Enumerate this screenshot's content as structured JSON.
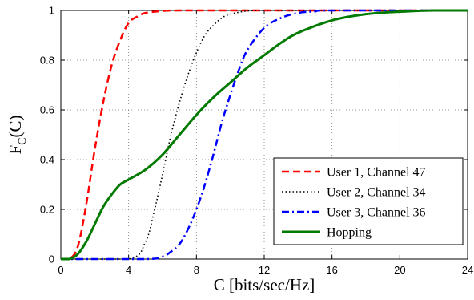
{
  "chart_data": {
    "type": "line",
    "xlabel": "C [bits/sec/Hz]",
    "ylabel": {
      "main": "F",
      "sub": "C",
      "suffix": "(C)"
    },
    "xlim": [
      0,
      24
    ],
    "ylim": [
      0,
      1
    ],
    "xticks": [
      "0",
      "4",
      "8",
      "12",
      "16",
      "20",
      "24"
    ],
    "yticks": [
      "0",
      "0.2",
      "0.4",
      "0.6",
      "0.8",
      "1"
    ],
    "grid": true,
    "legend_position": "bottom-right",
    "series": [
      {
        "name": "User 1, Channel 47",
        "color": "#ff0000",
        "style": "dashed",
        "x": [
          0,
          0.5,
          1,
          1.5,
          2,
          2.5,
          3,
          3.5,
          4,
          4.5,
          5,
          6,
          7,
          8,
          10,
          24
        ],
        "y": [
          0,
          0.0,
          0.05,
          0.22,
          0.44,
          0.63,
          0.78,
          0.88,
          0.95,
          0.975,
          0.99,
          0.998,
          1.0,
          1.0,
          1.0,
          1.0
        ]
      },
      {
        "name": "User 2, Channel 34",
        "color": "#000000",
        "style": "dotted",
        "x": [
          0,
          4,
          5,
          5.5,
          6,
          6.5,
          7,
          7.5,
          8,
          8.5,
          9,
          9.5,
          10,
          11,
          12,
          13,
          24
        ],
        "y": [
          0,
          0.0,
          0.07,
          0.19,
          0.34,
          0.5,
          0.63,
          0.74,
          0.83,
          0.9,
          0.94,
          0.97,
          0.985,
          0.998,
          1.0,
          1.0,
          1.0
        ]
      },
      {
        "name": "User 3, Channel 36",
        "color": "#0000ff",
        "style": "dashdot",
        "x": [
          0,
          5,
          6,
          6.5,
          7,
          7.5,
          8,
          8.5,
          9,
          9.5,
          10,
          10.5,
          11,
          12,
          13,
          14,
          15,
          16,
          24
        ],
        "y": [
          0,
          0.0,
          0.01,
          0.03,
          0.06,
          0.12,
          0.2,
          0.3,
          0.42,
          0.55,
          0.66,
          0.76,
          0.84,
          0.93,
          0.97,
          0.99,
          0.996,
          1.0,
          1.0
        ]
      },
      {
        "name": "Hopping",
        "color": "#007a00",
        "style": "solid",
        "x": [
          0,
          0.5,
          1,
          1.5,
          2,
          2.5,
          3,
          3.5,
          4,
          5,
          6,
          7,
          8,
          9,
          10,
          11,
          12,
          13,
          14,
          16,
          18,
          20,
          22,
          24
        ],
        "y": [
          0,
          0.0,
          0.02,
          0.07,
          0.14,
          0.21,
          0.26,
          0.3,
          0.32,
          0.36,
          0.42,
          0.5,
          0.58,
          0.65,
          0.71,
          0.77,
          0.82,
          0.87,
          0.91,
          0.96,
          0.985,
          0.995,
          1.0,
          1.0
        ]
      }
    ]
  }
}
